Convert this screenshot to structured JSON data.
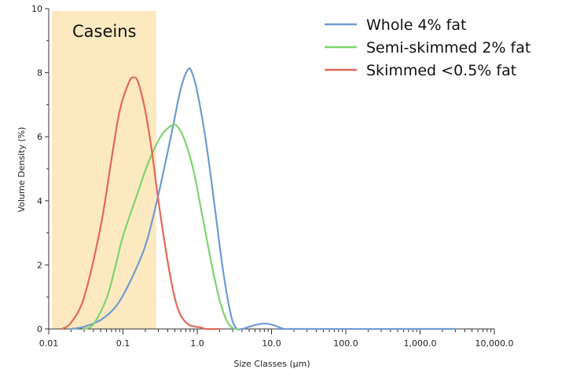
{
  "chart_data": {
    "type": "line",
    "title": "",
    "xlabel": "Size Classes (µm)",
    "ylabel": "Volume Density (%)",
    "x_scale": "log",
    "xlim": [
      0.01,
      10000
    ],
    "ylim": [
      0,
      10
    ],
    "x_ticks": [
      {
        "value": 0.01,
        "label": "0.01"
      },
      {
        "value": 0.1,
        "label": "0.1"
      },
      {
        "value": 1,
        "label": "1.0"
      },
      {
        "value": 10,
        "label": "10.0"
      },
      {
        "value": 100,
        "label": "100.0"
      },
      {
        "value": 1000,
        "label": "1,000.0"
      },
      {
        "value": 10000,
        "label": "10,000.0"
      }
    ],
    "y_ticks": [
      {
        "value": 0,
        "label": "0"
      },
      {
        "value": 2,
        "label": "2"
      },
      {
        "value": 4,
        "label": "4"
      },
      {
        "value": 6,
        "label": "6"
      },
      {
        "value": 8,
        "label": "8"
      },
      {
        "value": 10,
        "label": "10"
      }
    ],
    "highlight_band": {
      "label": "Caseins",
      "x_range": [
        0.01,
        0.28
      ],
      "color": "#fde9c0"
    },
    "legend_position": "top-right",
    "series": [
      {
        "name": "Whole 4% fat",
        "color": "#6f9bd1",
        "points": [
          [
            0.02,
            0.0
          ],
          [
            0.03,
            0.07
          ],
          [
            0.05,
            0.28
          ],
          [
            0.08,
            0.7
          ],
          [
            0.12,
            1.4
          ],
          [
            0.2,
            2.6
          ],
          [
            0.3,
            4.2
          ],
          [
            0.45,
            6.1
          ],
          [
            0.6,
            7.5
          ],
          [
            0.75,
            8.1
          ],
          [
            0.85,
            8.0
          ],
          [
            1.0,
            7.4
          ],
          [
            1.3,
            5.9
          ],
          [
            1.7,
            3.9
          ],
          [
            2.2,
            1.9
          ],
          [
            2.8,
            0.5
          ],
          [
            3.3,
            0.04
          ],
          [
            4.0,
            0.0
          ],
          [
            5.5,
            0.1
          ],
          [
            8.0,
            0.17
          ],
          [
            11.0,
            0.11
          ],
          [
            14.0,
            0.02
          ],
          [
            20.0,
            0.0
          ],
          [
            3000.0,
            0.0
          ]
        ]
      },
      {
        "name": "Semi-skimmed 2% fat",
        "color": "#7ed36f",
        "points": [
          [
            0.03,
            0.0
          ],
          [
            0.04,
            0.15
          ],
          [
            0.06,
            0.95
          ],
          [
            0.08,
            2.0
          ],
          [
            0.1,
            2.9
          ],
          [
            0.15,
            4.1
          ],
          [
            0.22,
            5.2
          ],
          [
            0.32,
            6.0
          ],
          [
            0.45,
            6.35
          ],
          [
            0.55,
            6.3
          ],
          [
            0.7,
            5.8
          ],
          [
            0.9,
            4.9
          ],
          [
            1.2,
            3.4
          ],
          [
            1.6,
            1.9
          ],
          [
            2.0,
            0.9
          ],
          [
            2.5,
            0.25
          ],
          [
            3.0,
            0.03
          ],
          [
            3.5,
            0.0
          ]
        ]
      },
      {
        "name": "Skimmed <0.5% fat",
        "color": "#e0685a",
        "points": [
          [
            0.015,
            0.0
          ],
          [
            0.02,
            0.2
          ],
          [
            0.03,
            1.0
          ],
          [
            0.05,
            3.2
          ],
          [
            0.07,
            5.3
          ],
          [
            0.09,
            6.8
          ],
          [
            0.12,
            7.7
          ],
          [
            0.14,
            7.85
          ],
          [
            0.16,
            7.7
          ],
          [
            0.2,
            6.8
          ],
          [
            0.25,
            5.4
          ],
          [
            0.3,
            4.0
          ],
          [
            0.4,
            2.1
          ],
          [
            0.5,
            0.95
          ],
          [
            0.6,
            0.42
          ],
          [
            0.75,
            0.15
          ],
          [
            0.9,
            0.08
          ],
          [
            1.1,
            0.05
          ],
          [
            1.3,
            0.0
          ],
          [
            2.0,
            0.0
          ]
        ]
      }
    ]
  }
}
